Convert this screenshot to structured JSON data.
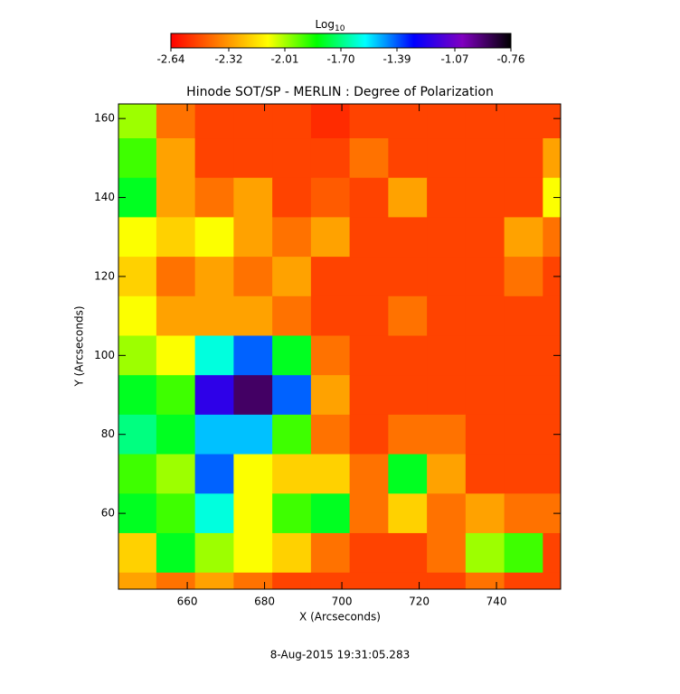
{
  "chart_data": {
    "type": "heatmap",
    "title": "Hinode SOT/SP - MERLIN : Degree of Polarization",
    "xlabel": "X (Arcseconds)",
    "ylabel": "Y (Arcseconds)",
    "footer": "8-Aug-2015 19:31:05.283",
    "colorbar": {
      "label": "Log",
      "label_subscript": "10",
      "clim": [
        -2.64,
        -0.76
      ],
      "ticks": [
        -2.64,
        -2.32,
        -2.01,
        {
          "value": -1.7,
          "label": "-1.70"
        },
        -1.39,
        -1.07,
        -0.76
      ],
      "colormap": [
        "#ff0000",
        "#ff8000",
        "#ffff00",
        "#00ff00",
        "#00ffff",
        "#0000ff",
        "#8000c0",
        "#000000"
      ]
    },
    "xlim": [
      642.2,
      756.6
    ],
    "ylim": [
      40.8,
      163.7
    ],
    "xticks": [
      660,
      680,
      700,
      720,
      740
    ],
    "yticks": [
      60,
      80,
      100,
      120,
      140,
      160
    ],
    "xbins": [
      642.2,
      652,
      662,
      672,
      682,
      692,
      702,
      712,
      722,
      732,
      742,
      752,
      756.6
    ],
    "ybins": [
      163.7,
      155,
      145,
      135,
      125,
      115,
      105,
      95,
      85,
      75,
      65,
      55,
      45,
      40.8
    ],
    "z": [
      [
        -2.0,
        -2.4,
        -2.5,
        -2.5,
        -2.5,
        -2.55,
        -2.5,
        -2.5,
        -2.5,
        -2.5,
        -2.5,
        -2.5
      ],
      [
        -1.9,
        -2.3,
        -2.5,
        -2.5,
        -2.5,
        -2.5,
        -2.4,
        -2.5,
        -2.5,
        -2.5,
        -2.5,
        -2.3
      ],
      [
        -1.8,
        -2.3,
        -2.4,
        -2.3,
        -2.5,
        -2.45,
        -2.5,
        -2.3,
        -2.5,
        -2.5,
        -2.5,
        -2.1
      ],
      [
        -2.1,
        -2.2,
        -2.1,
        -2.3,
        -2.4,
        -2.3,
        -2.5,
        -2.5,
        -2.5,
        -2.5,
        -2.3,
        -2.4
      ],
      [
        -2.2,
        -2.4,
        -2.3,
        -2.4,
        -2.3,
        -2.5,
        -2.5,
        -2.5,
        -2.5,
        -2.5,
        -2.4,
        -2.5
      ],
      [
        -2.1,
        -2.3,
        -2.3,
        -2.3,
        -2.4,
        -2.5,
        -2.5,
        -2.4,
        -2.5,
        -2.5,
        -2.5,
        -2.5
      ],
      [
        -2.0,
        -2.1,
        -1.6,
        -1.4,
        -1.8,
        -2.4,
        -2.5,
        -2.5,
        -2.5,
        -2.5,
        -2.5,
        -2.5
      ],
      [
        -1.8,
        -1.9,
        -1.2,
        -0.9,
        -1.4,
        -2.3,
        -2.5,
        -2.5,
        -2.5,
        -2.5,
        -2.5,
        -2.5
      ],
      [
        -1.7,
        -1.8,
        -1.5,
        -1.5,
        -1.9,
        -2.4,
        -2.5,
        -2.4,
        -2.4,
        -2.5,
        -2.5,
        -2.5
      ],
      [
        -1.9,
        -2.0,
        -1.4,
        -2.1,
        -2.2,
        -2.2,
        -2.4,
        -1.8,
        -2.3,
        -2.5,
        -2.5,
        -2.5
      ],
      [
        -1.8,
        -1.9,
        -1.6,
        -2.1,
        -1.9,
        -1.8,
        -2.4,
        -2.2,
        -2.4,
        -2.3,
        -2.4,
        -2.4
      ],
      [
        -2.2,
        -1.8,
        -2.0,
        -2.1,
        -2.2,
        -2.4,
        -2.5,
        -2.5,
        -2.4,
        -2.0,
        -1.9,
        -2.5
      ],
      [
        -2.3,
        -2.4,
        -2.3,
        -2.4,
        -2.5,
        -2.5,
        -2.5,
        -2.5,
        -2.5,
        -2.4,
        -2.5,
        -2.5
      ]
    ]
  }
}
